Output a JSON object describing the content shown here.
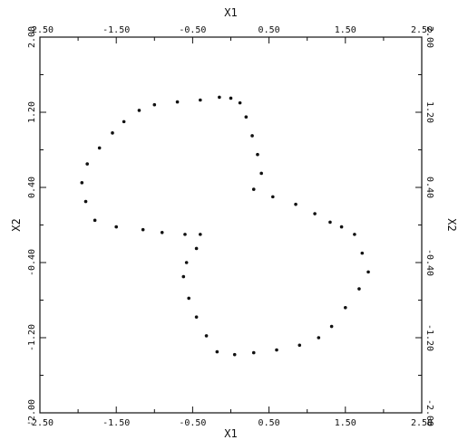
{
  "chart_data": {
    "type": "scatter",
    "title": "",
    "xlabel": "X1",
    "ylabel": "X2",
    "xlim": [
      -2.5,
      2.5
    ],
    "ylim": [
      -2.0,
      2.0
    ],
    "x_ticks": [
      -2.5,
      -1.5,
      -0.5,
      0.5,
      1.5,
      2.5
    ],
    "x_tick_labels": [
      "-2.50",
      "-1.50",
      "-0.50",
      "0.50",
      "1.50",
      "2.50"
    ],
    "y_ticks": [
      -2.0,
      -1.2,
      -0.4,
      0.4,
      1.2,
      2.0
    ],
    "y_tick_labels": [
      "-2.00",
      "-1.20",
      "-0.40",
      "0.40",
      "1.20",
      "2.00"
    ],
    "grid": false,
    "legend": "none",
    "series": [
      {
        "color": "#111111",
        "marker": "dot",
        "points": [
          [
            0.0,
            1.35
          ],
          [
            0.12,
            1.3
          ],
          [
            0.2,
            1.15
          ],
          [
            0.28,
            0.95
          ],
          [
            0.35,
            0.75
          ],
          [
            0.4,
            0.55
          ],
          [
            0.3,
            0.38
          ],
          [
            0.55,
            0.3
          ],
          [
            0.85,
            0.22
          ],
          [
            1.1,
            0.12
          ],
          [
            1.3,
            0.03
          ],
          [
            1.45,
            -0.02
          ],
          [
            1.62,
            -0.1
          ],
          [
            1.72,
            -0.3
          ],
          [
            1.8,
            -0.5
          ],
          [
            1.68,
            -0.68
          ],
          [
            1.5,
            -0.88
          ],
          [
            1.32,
            -1.08
          ],
          [
            1.15,
            -1.2
          ],
          [
            0.9,
            -1.28
          ],
          [
            0.6,
            -1.33
          ],
          [
            0.3,
            -1.36
          ],
          [
            0.05,
            -1.38
          ],
          [
            -0.18,
            -1.35
          ],
          [
            -0.32,
            -1.18
          ],
          [
            -0.45,
            -0.98
          ],
          [
            -0.55,
            -0.78
          ],
          [
            -0.62,
            -0.55
          ],
          [
            -0.58,
            -0.4
          ],
          [
            -0.45,
            -0.25
          ],
          [
            -0.4,
            -0.1
          ],
          [
            -0.6,
            -0.1
          ],
          [
            -0.9,
            -0.08
          ],
          [
            -1.15,
            -0.05
          ],
          [
            -1.5,
            -0.02
          ],
          [
            -1.78,
            0.05
          ],
          [
            -1.9,
            0.25
          ],
          [
            -1.95,
            0.45
          ],
          [
            -1.88,
            0.65
          ],
          [
            -1.72,
            0.82
          ],
          [
            -1.55,
            0.98
          ],
          [
            -1.4,
            1.1
          ],
          [
            -1.2,
            1.22
          ],
          [
            -1.0,
            1.28
          ],
          [
            -0.7,
            1.31
          ],
          [
            -0.4,
            1.33
          ],
          [
            -0.15,
            1.36
          ]
        ]
      }
    ]
  }
}
